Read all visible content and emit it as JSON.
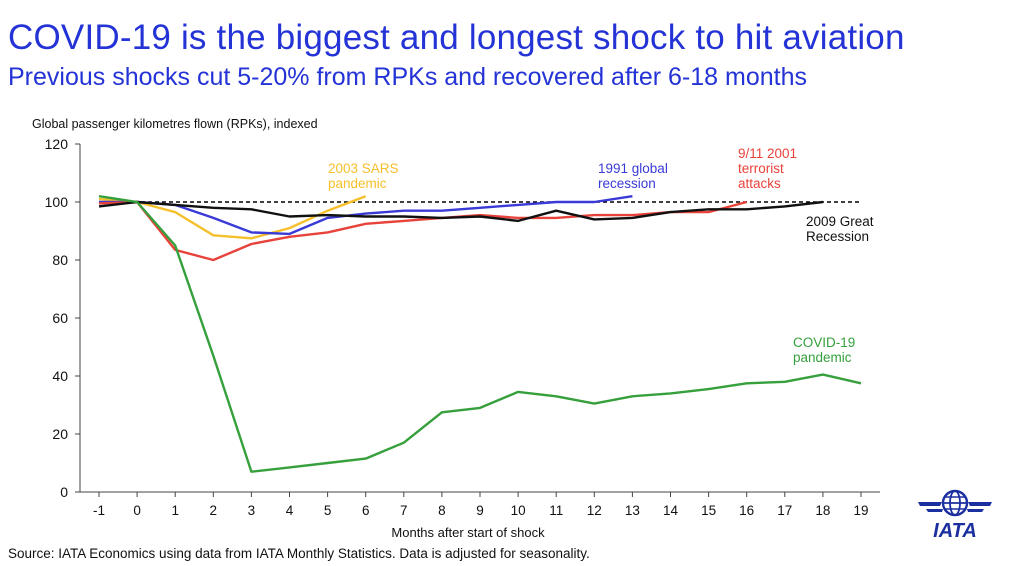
{
  "header": {
    "title": "COVID-19 is the biggest and longest shock to hit aviation",
    "subtitle": "Previous shocks cut 5-20% from RPKs and recovered after 6-18 months"
  },
  "footer": {
    "source": "Source: IATA Economics using data from IATA Monthly Statistics. Data is adjusted for seasonality."
  },
  "logo": {
    "text": "IATA",
    "icon": "globe-icon"
  },
  "chart_data": {
    "type": "line",
    "title": "",
    "ylabel": "Global passenger kilometres flown (RPKs), indexed",
    "xlabel": "Months after start of shock",
    "x": [
      -1,
      0,
      1,
      2,
      3,
      4,
      5,
      6,
      7,
      8,
      9,
      10,
      11,
      12,
      13,
      14,
      15,
      16,
      17,
      18,
      19
    ],
    "xlim": [
      -1,
      19
    ],
    "ylim": [
      0,
      120
    ],
    "yticks": [
      0,
      20,
      40,
      60,
      80,
      100,
      120
    ],
    "grid": false,
    "baseline": {
      "value": 100,
      "style": "dashed",
      "color": "#000000"
    },
    "series": [
      {
        "name": "2003 SARS pandemic",
        "label_lines": [
          "2003 SARS",
          "pandemic"
        ],
        "color": "#f5c02b",
        "x": [
          -1,
          0,
          1,
          2,
          3,
          4,
          5,
          6
        ],
        "values": [
          101,
          100,
          96.5,
          88.5,
          87.5,
          91,
          97,
          102
        ]
      },
      {
        "name": "1991 global recession",
        "label_lines": [
          "1991 global",
          "recession"
        ],
        "color": "#3a3ad6",
        "x": [
          -1,
          0,
          1,
          2,
          3,
          4,
          5,
          6,
          7,
          8,
          9,
          10,
          11,
          12,
          13
        ],
        "values": [
          100,
          100,
          99,
          94.5,
          89.5,
          89,
          94.5,
          96,
          97,
          97,
          98,
          99,
          100,
          100,
          102
        ]
      },
      {
        "name": "9/11 2001 terrorist attacks",
        "label_lines": [
          "9/11 2001",
          "terrorist",
          "attacks"
        ],
        "color": "#e8433b",
        "x": [
          -1,
          0,
          1,
          2,
          3,
          4,
          5,
          6,
          7,
          8,
          9,
          10,
          11,
          12,
          13,
          14,
          15,
          16
        ],
        "values": [
          99.5,
          100,
          83.5,
          80,
          85.5,
          88,
          89.5,
          92.5,
          93.5,
          94.5,
          95.5,
          94.5,
          94.5,
          95.5,
          95.5,
          96.5,
          96.5,
          100
        ]
      },
      {
        "name": "2009 Great Recession",
        "label_lines": [
          "2009 Great",
          "Recession"
        ],
        "color": "#111111",
        "x": [
          -1,
          0,
          1,
          2,
          3,
          4,
          5,
          6,
          7,
          8,
          9,
          10,
          11,
          12,
          13,
          14,
          15,
          16,
          17,
          18
        ],
        "values": [
          98.5,
          100,
          99,
          98,
          97.5,
          95,
          95.5,
          95,
          95,
          94.5,
          95,
          93.5,
          97,
          94,
          94.5,
          96.5,
          97.5,
          97.5,
          98.5,
          100
        ]
      },
      {
        "name": "COVID-19 pandemic",
        "label_lines": [
          "COVID-19",
          "pandemic"
        ],
        "color": "#36a03c",
        "x": [
          -1,
          0,
          1,
          2,
          3,
          4,
          5,
          6,
          7,
          8,
          9,
          10,
          11,
          12,
          13,
          14,
          15,
          16,
          17,
          18,
          19
        ],
        "values": [
          102,
          100,
          85,
          47,
          7,
          8.5,
          10,
          11.5,
          17,
          27.5,
          29,
          34.5,
          33,
          30.5,
          33,
          34,
          35.5,
          37.5,
          38,
          40.5,
          37.5
        ]
      }
    ]
  }
}
